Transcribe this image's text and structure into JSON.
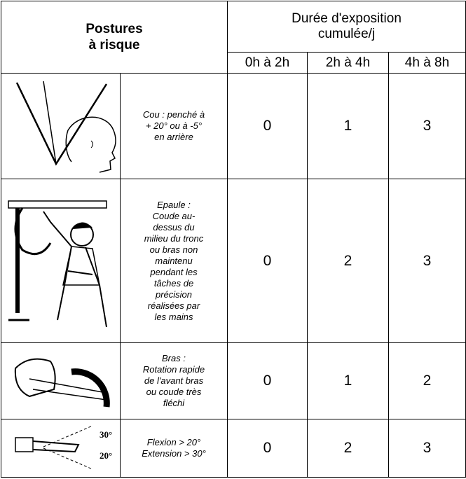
{
  "header": {
    "postures": [
      "Postures",
      "à risque"
    ],
    "duration": [
      "Durée d'exposition",
      "cumulée/j"
    ],
    "periods": [
      "0h à 2h",
      "2h à 4h",
      "4h à 8h"
    ]
  },
  "rows": [
    {
      "description": [
        "Cou : penché à",
        "+ 20° ou à -5°",
        "en arrière"
      ],
      "scores": [
        0,
        1,
        3
      ]
    },
    {
      "description": [
        "Epaule :",
        "Coude au-",
        "dessus du",
        "milieu du tronc",
        "ou bras non",
        "maintenu",
        "pendant les",
        "tâches de",
        "précision",
        "réalisées par",
        "les mains"
      ],
      "scores": [
        0,
        2,
        3
      ]
    },
    {
      "description": [
        "Bras :",
        "Rotation rapide",
        "de l'avant bras",
        "ou coude très",
        "fléchi"
      ],
      "scores": [
        0,
        1,
        2
      ]
    },
    {
      "description": [
        "Flexion > 20°",
        "Extension > 30°"
      ],
      "scores": [
        0,
        2,
        3
      ],
      "figure_labels": [
        "30°",
        "20°"
      ]
    }
  ]
}
